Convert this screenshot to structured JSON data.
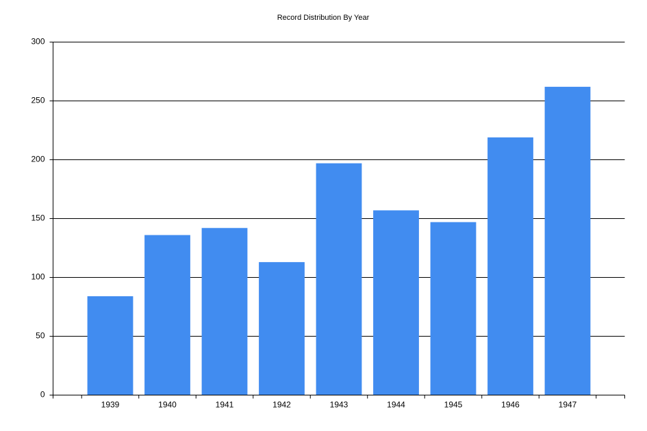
{
  "chart_data": {
    "type": "bar",
    "title": "Record Distribution By Year",
    "categories": [
      "1939",
      "1940",
      "1941",
      "1942",
      "1943",
      "1944",
      "1945",
      "1946",
      "1947"
    ],
    "values": [
      84,
      136,
      142,
      113,
      197,
      157,
      147,
      219,
      262
    ],
    "color": "#418cf0",
    "ylim": [
      0,
      300
    ],
    "yticks": [
      0,
      50,
      100,
      150,
      200,
      250,
      300
    ],
    "grid": true
  }
}
